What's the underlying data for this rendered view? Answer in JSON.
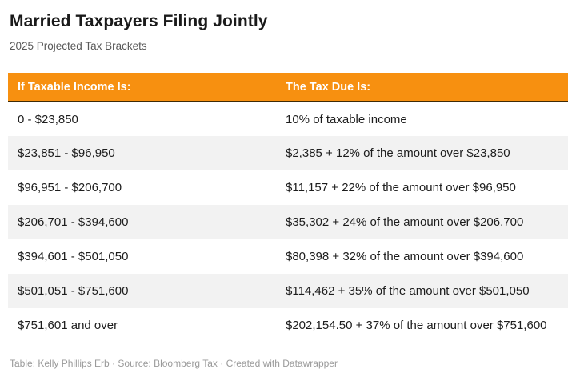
{
  "header": {
    "title": "Married Taxpayers Filing Jointly",
    "subtitle": "2025 Projected Tax Brackets"
  },
  "chart_data": {
    "type": "table",
    "title": "Married Taxpayers Filing Jointly",
    "subtitle": "2025 Projected Tax Brackets",
    "columns": [
      "If Taxable Income Is:",
      "The Tax Due Is:"
    ],
    "rows": [
      [
        "0 - $23,850",
        "10% of taxable income"
      ],
      [
        "$23,851 - $96,950",
        "$2,385 + 12% of the amount over $23,850"
      ],
      [
        "$96,951 - $206,700",
        "$11,157 + 22% of the amount over $96,950"
      ],
      [
        "$206,701 - $394,600",
        "$35,302 + 24% of the amount over $206,700"
      ],
      [
        "$394,601 - $501,050",
        "$80,398 + 32% of the amount over $394,600"
      ],
      [
        "$501,051 - $751,600",
        "$114,462 + 35% of the amount over $501,050"
      ],
      [
        "$751,601 and over",
        "$202,154.50 + 37% of the amount over $751,600"
      ]
    ],
    "layout_hints": {
      "zebra_striping": "even rows shaded",
      "header_style": "orange band with dark bottom rule"
    }
  },
  "footer": {
    "text": "Table: Kelly Phillips Erb · Source: Bloomberg Tax · Created with Datawrapper"
  },
  "colors": {
    "header_bg": "#F79010",
    "header_text": "#FFFFFF",
    "header_border": "#3F2B06",
    "row_alt_bg": "#F2F2F2",
    "body_text": "#1D1D1D",
    "subtitle_text": "#595959",
    "footer_text": "#9A9A9A"
  }
}
